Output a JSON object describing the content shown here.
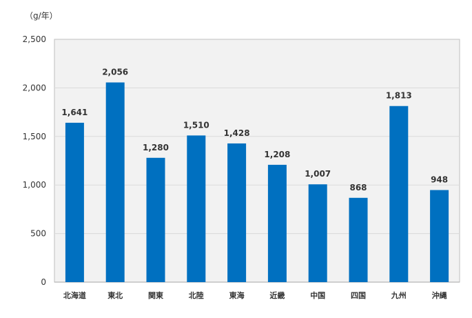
{
  "chart_data": {
    "type": "bar",
    "unit_label": "（g/年）",
    "categories": [
      "北海道",
      "東北",
      "関東",
      "北陸",
      "東海",
      "近畿",
      "中国",
      "四国",
      "九州",
      "沖縄"
    ],
    "values": [
      1641,
      2056,
      1280,
      1510,
      1428,
      1208,
      1007,
      868,
      1813,
      948
    ],
    "value_labels": [
      "1,641",
      "2,056",
      "1,280",
      "1,510",
      "1,428",
      "1,208",
      "1,007",
      "868",
      "1,813",
      "948"
    ],
    "y_ticks": [
      0,
      500,
      1000,
      1500,
      2000,
      2500
    ],
    "y_tick_labels": [
      "0",
      "500",
      "1,000",
      "1,500",
      "2,000",
      "2,500"
    ],
    "ylim": [
      0,
      2500
    ],
    "grid": true,
    "legend": "none",
    "colors": {
      "bar": "#0070C0",
      "plot_background": "#F2F2F2",
      "grid": "#D9D9D9",
      "text": "#333333"
    }
  }
}
